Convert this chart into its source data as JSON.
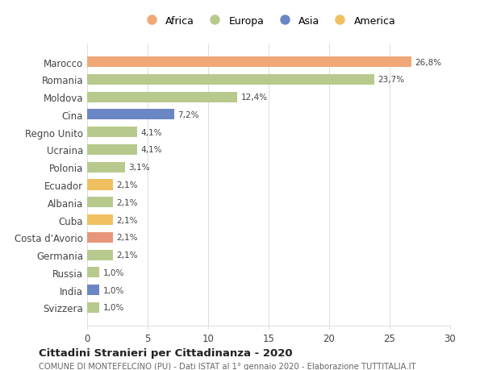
{
  "countries": [
    "Svizzera",
    "India",
    "Russia",
    "Germania",
    "Costa d'Avorio",
    "Cuba",
    "Albania",
    "Ecuador",
    "Polonia",
    "Ucraina",
    "Regno Unito",
    "Cina",
    "Moldova",
    "Romania",
    "Marocco"
  ],
  "values": [
    1.0,
    1.0,
    1.0,
    2.1,
    2.1,
    2.1,
    2.1,
    2.1,
    3.1,
    4.1,
    4.1,
    7.2,
    12.4,
    23.7,
    26.8
  ],
  "labels": [
    "1,0%",
    "1,0%",
    "1,0%",
    "2,1%",
    "2,1%",
    "2,1%",
    "2,1%",
    "2,1%",
    "3,1%",
    "4,1%",
    "4,1%",
    "7,2%",
    "12,4%",
    "23,7%",
    "26,8%"
  ],
  "colors": [
    "#b8c98d",
    "#6b86c4",
    "#b8c98d",
    "#b8c98d",
    "#e8967a",
    "#f0c060",
    "#b8c98d",
    "#f0c060",
    "#b8c98d",
    "#b8c98d",
    "#b8c98d",
    "#6b86c4",
    "#b8c98d",
    "#b8c98d",
    "#f0a878"
  ],
  "legend_labels": [
    "Africa",
    "Europa",
    "Asia",
    "America"
  ],
  "legend_colors": [
    "#f0a878",
    "#b8c98d",
    "#6b86c4",
    "#f0c060"
  ],
  "title": "Cittadini Stranieri per Cittadinanza - 2020",
  "subtitle": "COMUNE DI MONTEFELCINO (PU) - Dati ISTAT al 1° gennaio 2020 - Elaborazione TUTTITALIA.IT",
  "xlim": [
    0,
    30
  ],
  "background_color": "#ffffff",
  "grid_color": "#e0e0e0"
}
